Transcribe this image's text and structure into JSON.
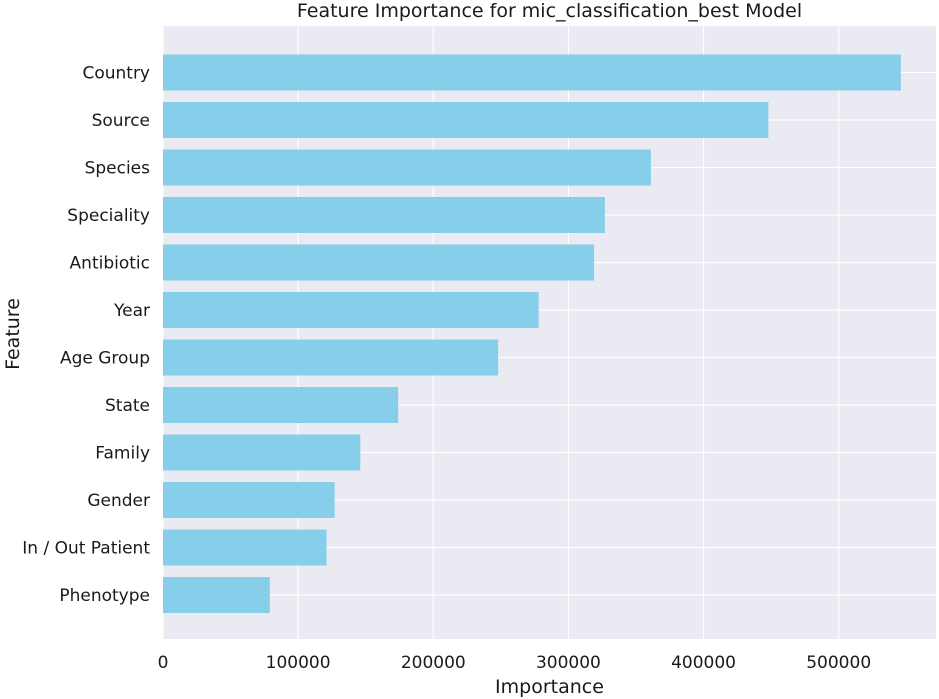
{
  "chart_data": {
    "type": "bar",
    "orientation": "horizontal",
    "title": "Feature Importance for mic_classification_best Model",
    "xlabel": "Importance",
    "ylabel": "Feature",
    "categories": [
      "Country",
      "Source",
      "Species",
      "Speciality",
      "Antibiotic",
      "Year",
      "Age Group",
      "State",
      "Family",
      "Gender",
      "In / Out Patient",
      "Phenotype"
    ],
    "values": [
      546000,
      448000,
      361000,
      327000,
      319000,
      278000,
      248000,
      174000,
      146000,
      127000,
      121000,
      79000
    ],
    "xlim": [
      0,
      572000
    ],
    "xticks": [
      0,
      100000,
      200000,
      300000,
      400000,
      500000
    ],
    "xtick_labels": [
      "0",
      "100000",
      "200000",
      "300000",
      "400000",
      "500000"
    ],
    "grid": true,
    "colors": {
      "bar": "#87ceeb",
      "background": "#eaeaf2",
      "grid": "#ffffff"
    }
  }
}
